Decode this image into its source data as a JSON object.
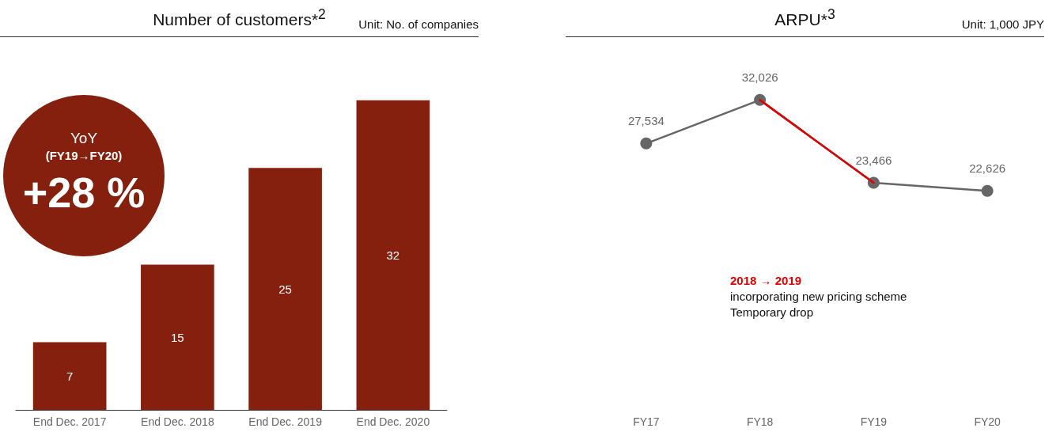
{
  "chart_data": [
    {
      "type": "bar",
      "title": "Number of customers*$^{2}$",
      "subtitle": "Unit: No. of companies",
      "categories": [
        "End Dec. 2017",
        "End Dec. 2018",
        "End Dec. 2019",
        "End Dec. 2020"
      ],
      "values": [
        7,
        15,
        25,
        32
      ],
      "color": "#86200e",
      "data_labels": true,
      "tick_labels": "x",
      "annotations": [
        "YoY",
        "(FY19→FY20)",
        "+28 %"
      ]
    },
    {
      "type": "line",
      "title": "ARPU*$^{3}$",
      "subtitle": "Unit: 1,000 JPY",
      "categories": [
        "FY17",
        "FY18",
        "FY19",
        "FY20"
      ],
      "marker": "circle",
      "tick_labels": "x",
      "series": [
        {
          "color": "#666666",
          "values": [
            27534,
            32026,
            23466,
            22626
          ],
          "value_labels": [
            "27,534",
            "32,026",
            "23,466",
            "22,626"
          ]
        },
        {
          "color": "#e00000",
          "values": [
            null,
            32026,
            23466,
            null
          ],
          "marker": "none"
        }
      ],
      "annotations": [
        "2018 → 2019",
        "incorporating new pricing scheme",
        "Temporary drop"
      ]
    }
  ]
}
